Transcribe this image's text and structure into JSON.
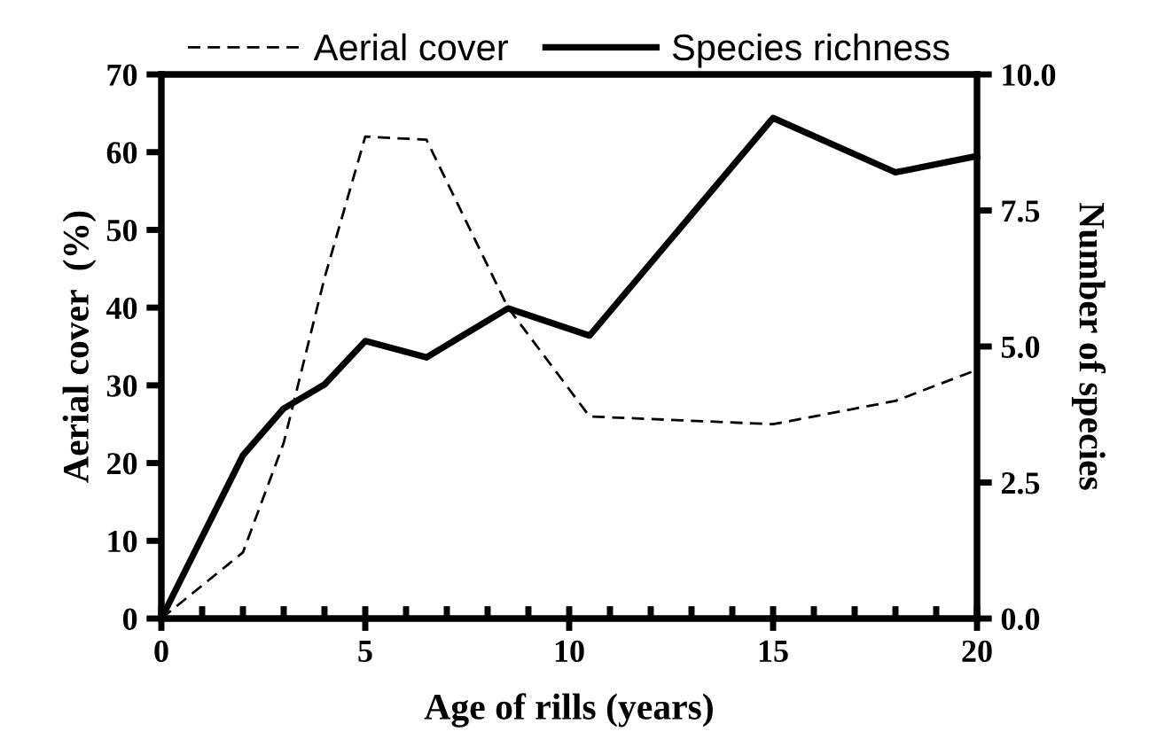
{
  "chart_data": {
    "type": "line",
    "xlabel": "Age of rills (years)",
    "ylabel": "Aerial cover  (%)",
    "y2label": "Number of species",
    "xlim": [
      0,
      20
    ],
    "xticks": [
      0,
      5,
      10,
      15,
      20
    ],
    "ylim": [
      0,
      70
    ],
    "yticks": [
      0,
      10,
      20,
      30,
      40,
      50,
      60,
      70
    ],
    "y2lim": [
      0,
      10
    ],
    "y2ticks": [
      {
        "value": 0,
        "label": "0.0"
      },
      {
        "value": 2.5,
        "label": "2.5"
      },
      {
        "value": 5,
        "label": "5.0"
      },
      {
        "value": 7.5,
        "label": "7.5"
      },
      {
        "value": 10,
        "label": "10.0"
      }
    ],
    "legend": "top",
    "grid": false,
    "marker": "none",
    "series": [
      {
        "name": "Aerial cover",
        "color": "#000000",
        "line_style": "dashed",
        "x": [
          0,
          2,
          3,
          4,
          5,
          6.5,
          8.5,
          10.5,
          15,
          18,
          20
        ],
        "values": [
          0,
          8.5,
          22.6,
          43.8,
          62,
          61.6,
          40,
          26,
          25,
          28,
          32
        ]
      },
      {
        "name": "Species richness",
        "color": "#000000",
        "line_style": "solid",
        "axis": "y2",
        "x": [
          0,
          2,
          3,
          4,
          5,
          6.5,
          8.5,
          10.5,
          15,
          18,
          20
        ],
        "values": [
          0,
          3.0,
          3.86,
          4.3,
          5.1,
          4.8,
          5.7,
          5.2,
          9.2,
          8.2,
          8.5
        ]
      }
    ]
  }
}
